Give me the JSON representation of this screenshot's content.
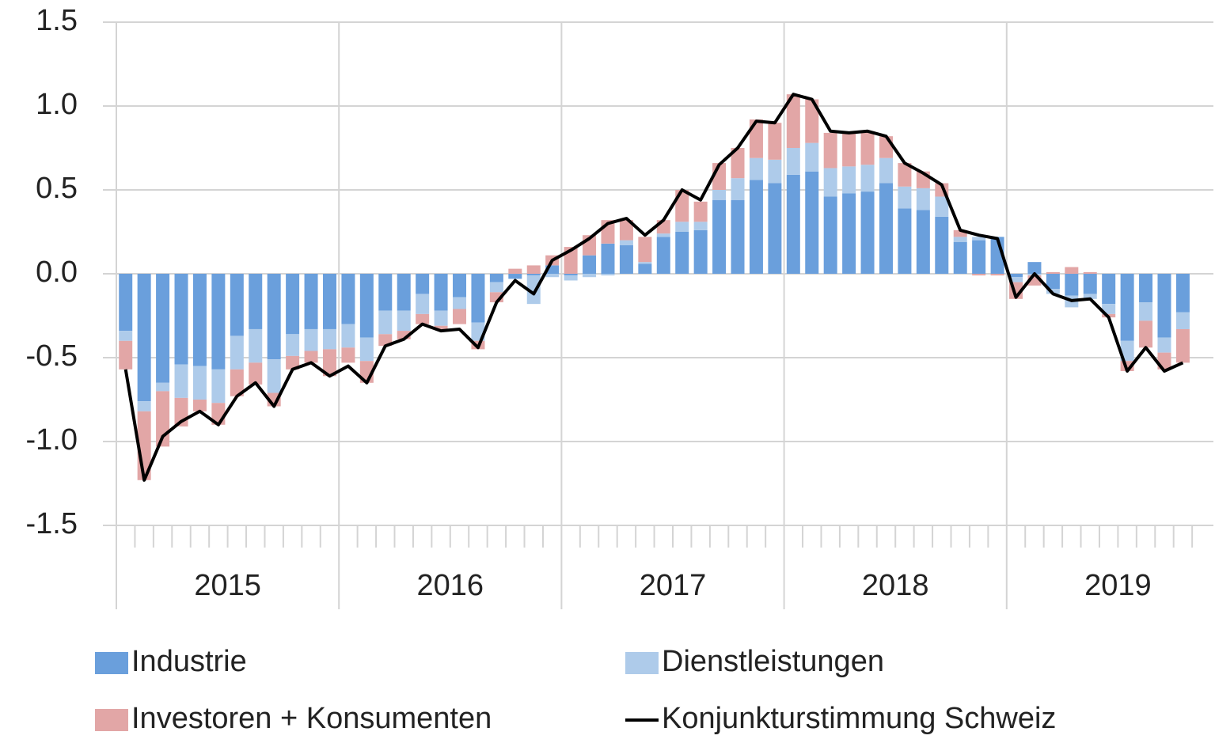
{
  "chart_data": {
    "type": "bar",
    "categories": [
      null,
      null,
      null,
      null,
      null,
      null,
      null,
      null,
      null,
      null,
      null,
      null,
      null,
      null,
      null,
      null,
      null,
      null,
      null,
      null,
      null,
      null,
      null,
      null,
      null,
      null,
      null,
      null,
      null,
      null,
      null,
      null,
      null,
      null,
      null,
      null,
      null,
      null,
      null,
      null,
      null,
      null,
      null,
      null,
      null,
      null,
      null,
      null,
      null,
      null,
      null,
      null,
      null,
      null,
      null,
      null,
      null,
      null
    ],
    "year_labels": [
      "2015",
      "2016",
      "2017",
      "2018",
      "2019"
    ],
    "ylim": [
      -1.5,
      1.5
    ],
    "yticks": [
      {
        "value": -1.5,
        "label": "-1.5"
      },
      {
        "value": -1,
        "label": "-1.0"
      },
      {
        "value": -0.5,
        "label": "-0.5"
      },
      {
        "value": 0,
        "label": "0.0"
      },
      {
        "value": 0.5,
        "label": "0.5"
      },
      {
        "value": 1,
        "label": "1.0"
      },
      {
        "value": 1.5,
        "label": "1.5"
      }
    ],
    "grid": true,
    "stacked": true,
    "series": [
      {
        "name": "Industrie",
        "color": "#6a9fdc",
        "values": [
          -0.34,
          -0.76,
          -0.65,
          -0.54,
          -0.55,
          -0.57,
          -0.37,
          -0.33,
          -0.51,
          -0.36,
          -0.33,
          -0.33,
          -0.3,
          -0.38,
          -0.22,
          -0.22,
          -0.12,
          -0.22,
          -0.14,
          -0.29,
          -0.05,
          -0.03,
          -0.01,
          0.05,
          -0.01,
          0.11,
          0.18,
          0.17,
          0.06,
          0.22,
          0.25,
          0.26,
          0.44,
          0.44,
          0.56,
          0.54,
          0.59,
          0.61,
          0.46,
          0.48,
          0.49,
          0.54,
          0.39,
          0.38,
          0.34,
          0.19,
          0.2,
          0.22,
          -0.02,
          0.07,
          -0.09,
          -0.13,
          -0.12,
          -0.18,
          -0.4,
          -0.17,
          -0.38,
          -0.23
        ]
      },
      {
        "name": "Dienstleistungen",
        "color": "#aecbea",
        "values": [
          -0.06,
          -0.06,
          -0.05,
          -0.2,
          -0.2,
          -0.2,
          -0.2,
          -0.2,
          -0.2,
          -0.13,
          -0.13,
          -0.12,
          -0.14,
          -0.14,
          -0.14,
          -0.12,
          -0.12,
          -0.09,
          -0.07,
          -0.11,
          -0.06,
          0,
          -0.17,
          -0.02,
          -0.03,
          -0.02,
          -0.01,
          0.03,
          0.01,
          0.02,
          0.06,
          0.05,
          0.06,
          0.13,
          0.13,
          0.14,
          0.16,
          0.17,
          0.17,
          0.16,
          0.16,
          0.15,
          0.13,
          0.13,
          0.12,
          0.03,
          0.02,
          0,
          -0.03,
          -0.01,
          -0.03,
          -0.07,
          -0.03,
          -0.06,
          -0.12,
          -0.11,
          -0.09,
          -0.1
        ]
      },
      {
        "name": "Investoren + Konsumenten",
        "color": "#e2a6a6",
        "values": [
          -0.17,
          -0.41,
          -0.33,
          -0.17,
          -0.07,
          -0.13,
          -0.16,
          -0.13,
          -0.08,
          -0.08,
          -0.07,
          -0.16,
          -0.09,
          -0.13,
          -0.07,
          -0.05,
          -0.06,
          -0.02,
          -0.09,
          -0.05,
          -0.06,
          0.03,
          0.05,
          0.06,
          0.16,
          0.12,
          0.14,
          0.12,
          0.15,
          0.08,
          0.19,
          0.12,
          0.16,
          0.18,
          0.23,
          0.22,
          0.32,
          0.26,
          0.21,
          0.2,
          0.2,
          0.13,
          0.14,
          0.1,
          0.08,
          0.04,
          -0.01,
          -0.01,
          -0.1,
          -0.06,
          0.01,
          0.04,
          0.01,
          -0.02,
          -0.06,
          -0.16,
          -0.1,
          -0.2
        ]
      },
      {
        "name": "Konjunkturstimmung Schweiz",
        "type": "line",
        "color": "#000000",
        "values": [
          -0.57,
          -1.23,
          -0.97,
          -0.88,
          -0.82,
          -0.9,
          -0.73,
          -0.65,
          -0.79,
          -0.57,
          -0.53,
          -0.61,
          -0.55,
          -0.65,
          -0.43,
          -0.39,
          -0.3,
          -0.34,
          -0.33,
          -0.44,
          -0.17,
          -0.04,
          -0.12,
          0.08,
          0.14,
          0.21,
          0.3,
          0.33,
          0.23,
          0.32,
          0.5,
          0.44,
          0.65,
          0.75,
          0.91,
          0.9,
          1.07,
          1.04,
          0.85,
          0.84,
          0.85,
          0.82,
          0.66,
          0.6,
          0.53,
          0.26,
          0.23,
          0.21,
          -0.14,
          0,
          -0.12,
          -0.16,
          -0.15,
          -0.26,
          -0.58,
          -0.44,
          -0.58,
          -0.53
        ]
      }
    ]
  }
}
